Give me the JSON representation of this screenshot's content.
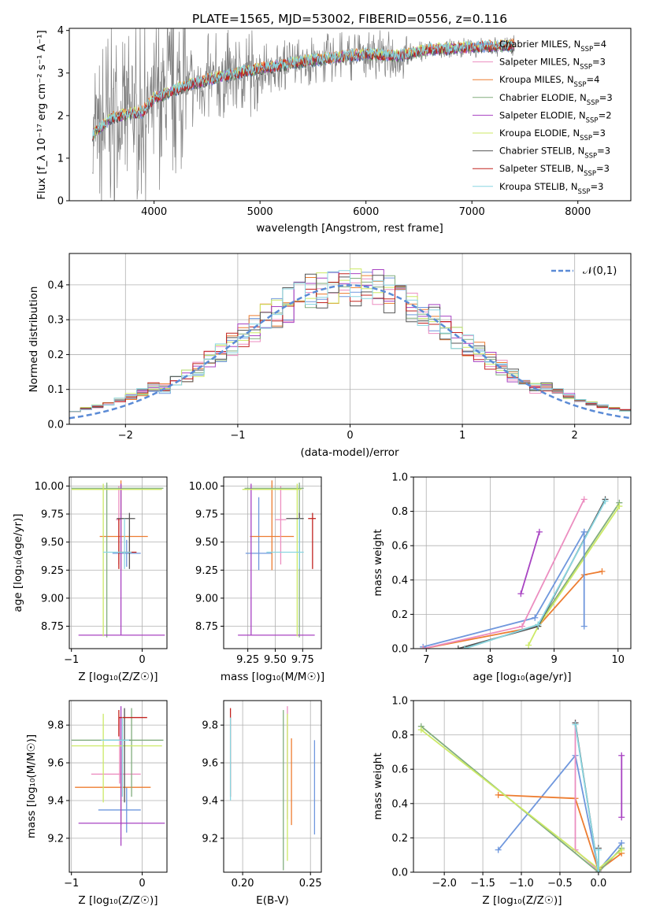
{
  "palette": [
    "#6f97dd",
    "#ed7d31",
    "#ec8ec0",
    "#82ad7e",
    "#a843c2",
    "#ccea66",
    "#555555",
    "#c2231f",
    "#8ad6e1"
  ],
  "chart_data": [
    {
      "id": "spectrum",
      "type": "line",
      "title": "PLATE=1565, MJD=53002, FIBERID=0556, z=0.116",
      "xlabel": "wavelength [Angstrom, rest frame]",
      "ylabel": "Flux [f_λ 10⁻¹⁷ erg cm⁻² s⁻¹ A⁻¹]",
      "xlim": [
        3200,
        8500
      ],
      "ylim": [
        0,
        4.05
      ],
      "xticks": [
        "4000",
        "5000",
        "6000",
        "7000",
        "8000"
      ],
      "yticks": [
        "0",
        "1",
        "2",
        "3",
        "4"
      ],
      "legend_position": "top-right",
      "observed_color": "#808080",
      "continuum": {
        "x": [
          3420,
          3600,
          3900,
          4000,
          4300,
          4600,
          5000,
          5500,
          6000,
          6300,
          6600,
          7000,
          7400
        ],
        "y": [
          1.55,
          1.95,
          2.1,
          2.4,
          2.7,
          2.9,
          3.1,
          3.3,
          3.45,
          3.4,
          3.55,
          3.6,
          3.65
        ]
      },
      "legend": [
        {
          "label": "Chabrier MILES, N",
          "sub": "SSP",
          "suffix": "=4",
          "color": "#6f97dd"
        },
        {
          "label": "Salpeter MILES, N",
          "sub": "SSP",
          "suffix": "=3",
          "color": "#ec8ec0"
        },
        {
          "label": "Kroupa MILES, N",
          "sub": "SSP",
          "suffix": "=4",
          "color": "#ed7d31"
        },
        {
          "label": "Chabrier ELODIE, N",
          "sub": "SSP",
          "suffix": "=3",
          "color": "#82ad7e"
        },
        {
          "label": "Salpeter ELODIE, N",
          "sub": "SSP",
          "suffix": "=2",
          "color": "#a843c2"
        },
        {
          "label": "Kroupa ELODIE, N",
          "sub": "SSP",
          "suffix": "=3",
          "color": "#ccea66"
        },
        {
          "label": "Chabrier STELIB, N",
          "sub": "SSP",
          "suffix": "=3",
          "color": "#555555"
        },
        {
          "label": "Salpeter STELIB, N",
          "sub": "SSP",
          "suffix": "=3",
          "color": "#c2231f"
        },
        {
          "label": "Kroupa STELIB, N",
          "sub": "SSP",
          "suffix": "=3",
          "color": "#8ad6e1"
        }
      ]
    },
    {
      "id": "residuals",
      "type": "histogram",
      "xlabel": "(data-model)/error",
      "ylabel": "Normed distribution",
      "xlim": [
        -2.5,
        2.5
      ],
      "ylim": [
        0,
        0.49
      ],
      "xticks": [
        "−2",
        "−1",
        "0",
        "1",
        "2"
      ],
      "yticks": [
        "0.0",
        "0.1",
        "0.2",
        "0.3",
        "0.4"
      ],
      "grid": true,
      "legend_position": "top-right",
      "reference": {
        "label": "𝒩(0,1)",
        "color": "#5b8bd6",
        "mu": 0,
        "sigma": 1
      }
    },
    {
      "id": "age_vs_Z",
      "type": "errorbar",
      "xlabel": "Z [log₁₀(Z/Z☉)]",
      "ylabel": "age  [log₁₀(age/yr)]",
      "xlim": [
        -1.03,
        0.35
      ],
      "ylim": [
        8.55,
        10.08
      ],
      "xticks": [
        "−1",
        "0"
      ],
      "yticks": [
        "8.75",
        "9.00",
        "9.25",
        "9.50",
        "9.75",
        "10.00"
      ],
      "grid": true,
      "points": [
        {
          "x": -0.22,
          "xerr": [
            0.2,
            0.2
          ],
          "y": 9.4,
          "yerr": [
            0.12,
            0.12
          ],
          "color": "#6f97dd"
        },
        {
          "x": -0.3,
          "xerr": [
            0.3,
            0.38
          ],
          "y": 9.55,
          "yerr": [
            0.3,
            0.5
          ],
          "color": "#ed7d31"
        },
        {
          "x": -0.33,
          "xerr": [
            0.04,
            0.02
          ],
          "y": 9.7,
          "yerr": [
            0.4,
            0.3
          ],
          "color": "#ec8ec0"
        },
        {
          "x": -0.5,
          "xerr": [
            0.5,
            0.8
          ],
          "y": 9.98,
          "yerr": [
            1.33,
            0.05
          ],
          "color": "#82ad7e"
        },
        {
          "x": -0.3,
          "xerr": [
            0.6,
            0.62
          ],
          "y": 8.67,
          "yerr": [
            0,
            1.35
          ],
          "color": "#a843c2"
        },
        {
          "x": -0.55,
          "xerr": [
            0.45,
            0.83
          ],
          "y": 9.97,
          "yerr": [
            1.31,
            0.05
          ],
          "color": "#ccea66"
        },
        {
          "x": -0.18,
          "xerr": [
            0.18,
            0.08
          ],
          "y": 9.71,
          "yerr": [
            0.45,
            0.05
          ],
          "color": "#555555"
        },
        {
          "x": -0.33,
          "xerr": [
            0.0,
            0.25
          ],
          "y": 9.41,
          "yerr": [
            0.15,
            0.3
          ],
          "color": "#c2231f"
        },
        {
          "x": -0.25,
          "xerr": [
            0.3,
            0.1
          ],
          "y": 9.41,
          "yerr": [
            0.15,
            0.3
          ],
          "color": "#8ad6e1"
        }
      ]
    },
    {
      "id": "age_vs_mass",
      "type": "errorbar",
      "xlabel": "mass [log₁₀(M/M☉)]",
      "ylabel": "",
      "xlim": [
        9.03,
        9.92
      ],
      "ylim": [
        8.55,
        10.08
      ],
      "xticks": [
        "9.25",
        "9.50",
        "9.75"
      ],
      "yticks": [
        "8.75",
        "9.00",
        "9.25",
        "9.50",
        "9.75",
        "10.00"
      ],
      "grid": true,
      "points": [
        {
          "x": 9.35,
          "xerr": [
            0.12,
            0.12
          ],
          "y": 9.4,
          "yerr": [
            0.15,
            0.5
          ],
          "color": "#6f97dd"
        },
        {
          "x": 9.47,
          "xerr": [
            0.2,
            0.2
          ],
          "y": 9.55,
          "yerr": [
            0.3,
            0.5
          ],
          "color": "#ed7d31"
        },
        {
          "x": 9.55,
          "xerr": [
            0.05,
            0.05
          ],
          "y": 9.7,
          "yerr": [
            0.4,
            0.3
          ],
          "color": "#ec8ec0"
        },
        {
          "x": 9.72,
          "xerr": [
            0.5,
            0.04
          ],
          "y": 9.98,
          "yerr": [
            1.33,
            0.05
          ],
          "color": "#82ad7e"
        },
        {
          "x": 9.28,
          "xerr": [
            0.12,
            0.58
          ],
          "y": 8.67,
          "yerr": [
            0,
            1.35
          ],
          "color": "#a843c2"
        },
        {
          "x": 9.7,
          "xerr": [
            0.5,
            0.04
          ],
          "y": 9.97,
          "yerr": [
            1.31,
            0.05
          ],
          "color": "#ccea66"
        },
        {
          "x": 9.72,
          "xerr": [
            0.12,
            0.04
          ],
          "y": 9.71,
          "yerr": [
            0.45,
            0.05
          ],
          "color": "#555555"
        },
        {
          "x": 9.84,
          "xerr": [
            0.04,
            0.03
          ],
          "y": 9.71,
          "yerr": [
            0.45,
            0.05
          ],
          "color": "#c2231f"
        },
        {
          "x": 9.72,
          "xerr": [
            0.3,
            0.04
          ],
          "y": 9.41,
          "yerr": [
            0.15,
            0.3
          ],
          "color": "#8ad6e1"
        }
      ]
    },
    {
      "id": "weight_vs_age",
      "type": "line",
      "xlabel": "age  [log₁₀(age/yr)]",
      "ylabel": "mass weight",
      "xlim": [
        6.8,
        10.2
      ],
      "ylim": [
        0,
        1
      ],
      "xticks": [
        "7",
        "8",
        "9",
        "10"
      ],
      "yticks": [
        "0.0",
        "0.2",
        "0.4",
        "0.6",
        "0.8",
        "1.0"
      ],
      "grid": true,
      "series": [
        {
          "color": "#6f97dd",
          "x": [
            6.95,
            8.7,
            9.47
          ],
          "y": [
            0.01,
            0.18,
            0.68
          ]
        },
        {
          "color": "#ed7d31",
          "x": [
            6.95,
            8.75,
            9.47,
            9.75
          ],
          "y": [
            0.0,
            0.13,
            0.43,
            0.45
          ]
        },
        {
          "color": "#ec8ec0",
          "x": [
            6.95,
            8.5,
            9.47
          ],
          "y": [
            0.0,
            0.13,
            0.87
          ]
        },
        {
          "color": "#82ad7e",
          "x": [
            7.6,
            8.75,
            10.02
          ],
          "y": [
            0.0,
            0.14,
            0.85
          ]
        },
        {
          "color": "#a843c2",
          "x": [
            8.48,
            8.77
          ],
          "y": [
            0.32,
            0.68
          ]
        },
        {
          "color": "#ccea66",
          "x": [
            8.6,
            8.75,
            10.02
          ],
          "y": [
            0.02,
            0.13,
            0.83
          ]
        },
        {
          "color": "#555555",
          "x": [
            7.5,
            8.75,
            9.8
          ],
          "y": [
            0.0,
            0.13,
            0.87
          ]
        },
        {
          "color": "#8ad6e1",
          "x": [
            7.6,
            8.75,
            9.8
          ],
          "y": [
            0.0,
            0.14,
            0.86
          ]
        }
      ],
      "extra_segments": [
        {
          "color": "#6f97dd",
          "x": [
            9.47,
            9.47
          ],
          "y": [
            0.68,
            0.13
          ]
        }
      ]
    },
    {
      "id": "mass_vs_Z",
      "type": "errorbar",
      "xlabel": "Z [log₁₀(Z/Z☉)]",
      "ylabel": "mass [log₁₀(M/M☉)]",
      "xlim": [
        -1.03,
        0.35
      ],
      "ylim": [
        9.02,
        9.93
      ],
      "xticks": [
        "−1",
        "0"
      ],
      "yticks": [
        "9.2",
        "9.4",
        "9.6",
        "9.8"
      ],
      "grid": true,
      "points": [
        {
          "x": -0.22,
          "xerr": [
            0.4,
            0.2
          ],
          "y": 9.35,
          "yerr": [
            0.12,
            0.12
          ],
          "color": "#6f97dd"
        },
        {
          "x": -0.3,
          "xerr": [
            0.65,
            0.42
          ],
          "y": 9.47,
          "yerr": [
            0.2,
            0.2
          ],
          "color": "#ed7d31"
        },
        {
          "x": -0.32,
          "xerr": [
            0.4,
            0.3
          ],
          "y": 9.54,
          "yerr": [
            0.05,
            0.3
          ],
          "color": "#ec8ec0"
        },
        {
          "x": -0.15,
          "xerr": [
            0.85,
            0.45
          ],
          "y": 9.72,
          "yerr": [
            0.3,
            0.17
          ],
          "color": "#82ad7e"
        },
        {
          "x": -0.3,
          "xerr": [
            0.6,
            0.62
          ],
          "y": 9.28,
          "yerr": [
            0.12,
            0.62
          ],
          "color": "#a843c2"
        },
        {
          "x": -0.55,
          "xerr": [
            0.45,
            0.83
          ],
          "y": 9.69,
          "yerr": [
            0.3,
            0.17
          ],
          "color": "#ccea66"
        },
        {
          "x": -0.25,
          "xerr": [
            0.3,
            0.08
          ],
          "y": 9.72,
          "yerr": [
            0.33,
            0.17
          ],
          "color": "#555555"
        },
        {
          "x": -0.33,
          "xerr": [
            0.0,
            0.4
          ],
          "y": 9.84,
          "yerr": [
            0.1,
            0.04
          ],
          "color": "#c2231f"
        },
        {
          "x": -0.28,
          "xerr": [
            0.3,
            0.1
          ],
          "y": 9.72,
          "yerr": [
            0.3,
            0.12
          ],
          "color": "#8ad6e1"
        }
      ]
    },
    {
      "id": "mass_vs_EBV",
      "type": "errorbar",
      "xlabel": "E(B-V)",
      "ylabel": "",
      "xlim": [
        0.186,
        0.258
      ],
      "ylim": [
        9.02,
        9.93
      ],
      "xticks": [
        "0.20",
        "0.25"
      ],
      "yticks": [
        "9.2",
        "9.4",
        "9.6",
        "9.8"
      ],
      "grid": true,
      "points": [
        {
          "x": 0.253,
          "y": 9.47,
          "yerr": [
            0.25,
            0.25
          ],
          "color": "#6f97dd"
        },
        {
          "x": 0.236,
          "y": 9.5,
          "yerr": [
            0.23,
            0.23
          ],
          "color": "#ed7d31"
        },
        {
          "x": 0.233,
          "y": 9.6,
          "yerr": [
            0.3,
            0.3
          ],
          "color": "#ec8ec0"
        },
        {
          "x": 0.23,
          "y": 9.43,
          "yerr": [
            0.4,
            0.45
          ],
          "color": "#82ad7e"
        },
        {
          "x": 0.233,
          "y": 9.53,
          "yerr": [
            0.45,
            0.33
          ],
          "color": "#ccea66"
        },
        {
          "x": 0.191,
          "y": 9.72,
          "yerr": [
            0.3,
            0.17
          ],
          "color": "#c2231f"
        },
        {
          "x": 0.191,
          "y": 9.62,
          "yerr": [
            0.22,
            0.22
          ],
          "color": "#8ad6e1"
        }
      ]
    },
    {
      "id": "weight_vs_Z",
      "type": "line",
      "xlabel": "Z [log₁₀(Z/Z☉)]",
      "ylabel": "mass weight",
      "xlim": [
        -2.4,
        0.42
      ],
      "ylim": [
        0,
        1
      ],
      "xticks": [
        "−2.0",
        "−1.5",
        "−1.0",
        "−0.5",
        "0.0"
      ],
      "yticks": [
        "0.0",
        "0.2",
        "0.4",
        "0.6",
        "0.8",
        "1.0"
      ],
      "grid": true,
      "series": [
        {
          "color": "#6f97dd",
          "x": [
            -1.3,
            -0.3,
            0.0,
            0.3
          ],
          "y": [
            0.13,
            0.68,
            0.01,
            0.17
          ]
        },
        {
          "color": "#ed7d31",
          "x": [
            -1.3,
            -0.3,
            0.0,
            0.3
          ],
          "y": [
            0.45,
            0.43,
            0.01,
            0.11
          ]
        },
        {
          "color": "#ec8ec0",
          "x": [
            -0.3,
            -0.3,
            0.0
          ],
          "y": [
            0.87,
            0.13,
            0.01
          ]
        },
        {
          "color": "#82ad7e",
          "x": [
            -2.3,
            0.0,
            0.3
          ],
          "y": [
            0.85,
            0.0,
            0.14
          ]
        },
        {
          "color": "#a843c2",
          "x": [
            0.3,
            0.3
          ],
          "y": [
            0.32,
            0.68
          ]
        },
        {
          "color": "#ccea66",
          "x": [
            -2.3,
            0.0,
            0.3
          ],
          "y": [
            0.83,
            0.02,
            0.13
          ]
        },
        {
          "color": "#555555",
          "x": [
            -0.3,
            0.0,
            0.0
          ],
          "y": [
            0.87,
            0.0,
            0.14
          ]
        },
        {
          "color": "#8ad6e1",
          "x": [
            -0.3,
            0.0,
            0.0
          ],
          "y": [
            0.86,
            0.0,
            0.13
          ]
        }
      ]
    }
  ]
}
